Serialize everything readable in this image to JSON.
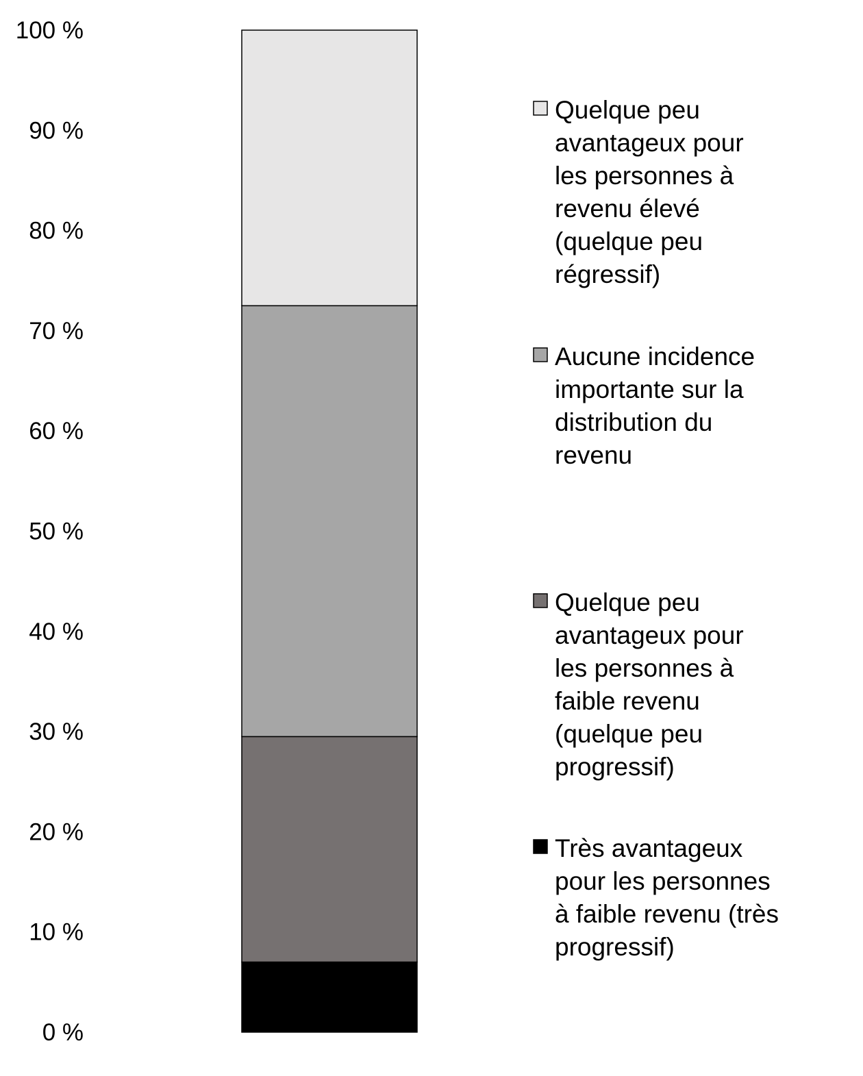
{
  "chart_data": {
    "type": "bar",
    "stacked": true,
    "categories": [
      ""
    ],
    "ylim": [
      0,
      100
    ],
    "yticks": [
      "0 %",
      "10 %",
      "20 %",
      "30 %",
      "40 %",
      "50 %",
      "60 %",
      "70 %",
      "80 %",
      "90 %",
      "100 %"
    ],
    "legend_position": "right",
    "series": [
      {
        "name": "Très avantageux pour les personnes à faible revenu (très progressif)",
        "legend_lines": [
          "Très avantageux",
          "pour les personnes",
          "à faible revenu (très",
          "progressif)"
        ],
        "values": [
          7
        ],
        "color": "#000000"
      },
      {
        "name": "Quelque peu avantageux pour les personnes à faible revenu (quelque peu progressif)",
        "legend_lines": [
          "Quelque peu",
          "avantageux pour",
          "les personnes à",
          "faible revenu",
          "(quelque peu",
          "progressif)"
        ],
        "values": [
          22.5
        ],
        "color": "#767171"
      },
      {
        "name": "Aucune incidence importante sur la distribution du revenu",
        "legend_lines": [
          "Aucune incidence",
          "importante sur la",
          "distribution du",
          "revenu"
        ],
        "values": [
          43
        ],
        "color": "#a6a6a6"
      },
      {
        "name": "Quelque peu avantageux pour les personnes à revenu élevé (quelque peu régressif)",
        "legend_lines": [
          "Quelque peu",
          "avantageux pour",
          "les personnes à",
          "revenu élevé",
          "(quelque peu",
          "régressif)"
        ],
        "values": [
          27.5
        ],
        "color": "#e7e6e6"
      }
    ]
  }
}
